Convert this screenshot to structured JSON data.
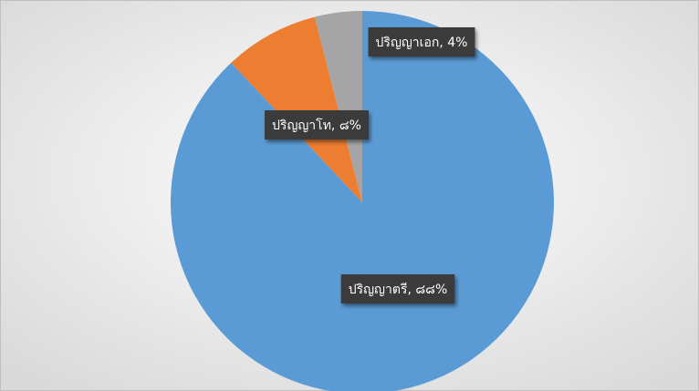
{
  "chart_data": {
    "type": "pie",
    "values": [
      88,
      8,
      4
    ],
    "value_labels": [
      "ปริญญาตรี, ๘๘%",
      "ปริญญาโท, ๘%",
      "ปริญญาเอก, 4%"
    ],
    "colors": [
      "#5b9bd5",
      "#ed7d31",
      "#a5a5a5"
    ]
  }
}
